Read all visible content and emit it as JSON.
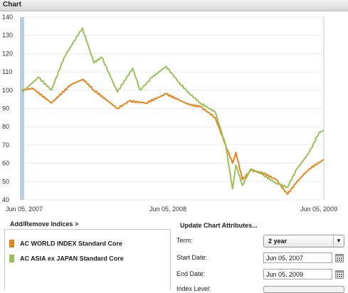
{
  "header": {
    "title": "Chart"
  },
  "chart_data": {
    "type": "line",
    "ylim": [
      40,
      140
    ],
    "y_ticks": [
      "140",
      "130",
      "120",
      "110",
      "100",
      "90",
      "80",
      "70",
      "60",
      "50",
      "40"
    ],
    "x_tick_labels": [
      "Jun 05, 2007",
      "Jun 05, 2008",
      "Jun 05, 2009"
    ],
    "grid": true,
    "series": [
      {
        "name": "AC WORLD INDEX Standard Core",
        "color": "#e8841c",
        "x": [
          "2007-06-05",
          "2007-07-01",
          "2007-08-15",
          "2007-10-01",
          "2007-10-31",
          "2007-11-26",
          "2008-01-22",
          "2008-02-20",
          "2008-04-01",
          "2008-05-19",
          "2008-06-15",
          "2008-07-15",
          "2008-08-10",
          "2008-09-15",
          "2008-10-10",
          "2008-10-27",
          "2008-11-04",
          "2008-11-20",
          "2008-12-10",
          "2009-01-06",
          "2009-02-10",
          "2009-03-09",
          "2009-04-01",
          "2009-05-01",
          "2009-06-05"
        ],
        "values": [
          100,
          101,
          93,
          103,
          106,
          100,
          90,
          94,
          93,
          98,
          95,
          92,
          91,
          85,
          70,
          60,
          66,
          51,
          56,
          55,
          51,
          43,
          50,
          57,
          62
        ]
      },
      {
        "name": "AC ASIA ex JAPAN Standard Core",
        "color": "#9bbf59",
        "x": [
          "2007-06-05",
          "2007-07-15",
          "2007-08-15",
          "2007-09-15",
          "2007-10-29",
          "2007-11-26",
          "2007-12-15",
          "2008-01-22",
          "2008-02-28",
          "2008-03-17",
          "2008-04-15",
          "2008-05-19",
          "2008-06-20",
          "2008-07-15",
          "2008-08-10",
          "2008-09-15",
          "2008-10-10",
          "2008-10-27",
          "2008-11-04",
          "2008-11-20",
          "2008-12-10",
          "2009-01-06",
          "2009-02-10",
          "2009-03-09",
          "2009-04-01",
          "2009-05-01",
          "2009-05-25",
          "2009-06-05"
        ],
        "values": [
          99,
          107,
          100,
          118,
          134,
          115,
          118,
          99,
          112,
          100,
          107,
          113,
          104,
          98,
          93,
          88,
          70,
          46,
          59,
          48,
          57,
          54,
          49,
          47,
          57,
          66,
          77,
          78
        ]
      }
    ]
  },
  "indices": {
    "heading": "Add/Remove Indices >",
    "items": [
      {
        "label": "AC WORLD INDEX Standard Core",
        "color": "#e8841c"
      },
      {
        "label": "AC ASIA ex JAPAN Standard Core",
        "color": "#9bbf59"
      }
    ]
  },
  "attributes": {
    "heading": "Update Chart Attributes...",
    "term_label": "Term:",
    "term_value": "2 year",
    "start_label": "Start Date:",
    "start_value": "Jun 05, 2007",
    "end_label": "End Date:",
    "end_value": "Jun 05, 2009",
    "index_level_label": "Index Level:"
  }
}
